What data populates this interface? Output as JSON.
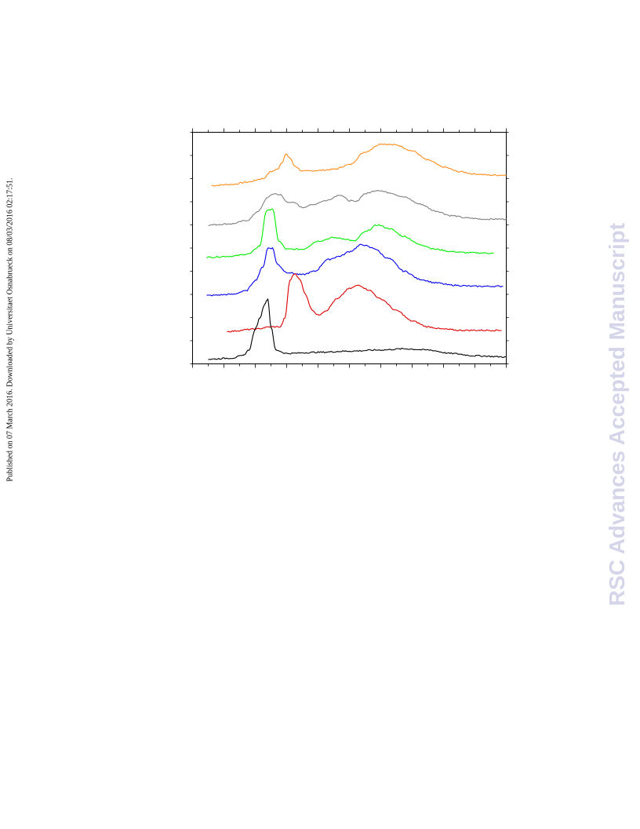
{
  "side_note": "Published on 07 March 2016. Downloaded by Universitaet Osnabrueck on 08/03/2016 02:17:51.",
  "watermark": "RSC Advances Accepted Manuscript",
  "chart_data": {
    "type": "line",
    "title": "",
    "xlabel": "",
    "ylabel": "",
    "xlim": [
      0,
      20
    ],
    "ylim": [
      0,
      10
    ],
    "x_ticks": 20,
    "y_ticks": 10,
    "grid": false,
    "series": [
      {
        "color": "#ff8c1a",
        "points": [
          [
            1.2,
            7.7
          ],
          [
            2.5,
            7.75
          ],
          [
            3.5,
            7.85
          ],
          [
            4.5,
            8.0
          ],
          [
            5.0,
            8.3
          ],
          [
            5.4,
            8.4
          ],
          [
            5.7,
            8.7
          ],
          [
            5.95,
            9.05
          ],
          [
            6.2,
            8.9
          ],
          [
            6.5,
            8.55
          ],
          [
            7.0,
            8.32
          ],
          [
            8.0,
            8.35
          ],
          [
            9.0,
            8.4
          ],
          [
            10.0,
            8.6
          ],
          [
            11.0,
            9.15
          ],
          [
            12.0,
            9.5
          ],
          [
            13.0,
            9.45
          ],
          [
            14.0,
            9.2
          ],
          [
            15.0,
            8.8
          ],
          [
            16.0,
            8.5
          ],
          [
            17.0,
            8.3
          ],
          [
            18.0,
            8.2
          ],
          [
            19.0,
            8.15
          ],
          [
            20.0,
            8.15
          ]
        ]
      },
      {
        "color": "#808080",
        "points": [
          [
            1.0,
            6.0
          ],
          [
            2.5,
            6.05
          ],
          [
            3.5,
            6.2
          ],
          [
            4.2,
            6.6
          ],
          [
            4.8,
            7.2
          ],
          [
            5.2,
            7.35
          ],
          [
            5.6,
            7.3
          ],
          [
            6.0,
            7.0
          ],
          [
            6.5,
            6.95
          ],
          [
            7.0,
            6.75
          ],
          [
            7.5,
            6.85
          ],
          [
            8.5,
            7.05
          ],
          [
            9.4,
            7.3
          ],
          [
            10.0,
            7.05
          ],
          [
            10.4,
            7.0
          ],
          [
            11.0,
            7.35
          ],
          [
            11.8,
            7.5
          ],
          [
            12.5,
            7.4
          ],
          [
            13.5,
            7.2
          ],
          [
            14.5,
            6.9
          ],
          [
            15.5,
            6.6
          ],
          [
            16.5,
            6.4
          ],
          [
            17.5,
            6.3
          ],
          [
            18.5,
            6.25
          ],
          [
            20.0,
            6.25
          ]
        ]
      },
      {
        "color": "#00ee00",
        "points": [
          [
            0.9,
            4.6
          ],
          [
            2.5,
            4.65
          ],
          [
            3.6,
            4.75
          ],
          [
            4.3,
            5.1
          ],
          [
            4.7,
            6.6
          ],
          [
            5.1,
            6.7
          ],
          [
            5.5,
            5.3
          ],
          [
            6.0,
            4.95
          ],
          [
            7.0,
            4.95
          ],
          [
            8.0,
            5.3
          ],
          [
            9.0,
            5.45
          ],
          [
            9.7,
            5.4
          ],
          [
            10.3,
            5.3
          ],
          [
            11.0,
            5.7
          ],
          [
            11.8,
            6.0
          ],
          [
            12.5,
            5.85
          ],
          [
            13.5,
            5.5
          ],
          [
            14.5,
            5.15
          ],
          [
            15.5,
            4.95
          ],
          [
            16.5,
            4.85
          ],
          [
            17.5,
            4.8
          ],
          [
            19.2,
            4.78
          ]
        ]
      },
      {
        "color": "#0000ee",
        "points": [
          [
            0.9,
            2.95
          ],
          [
            2.5,
            3.0
          ],
          [
            3.4,
            3.15
          ],
          [
            4.0,
            3.6
          ],
          [
            4.5,
            4.2
          ],
          [
            4.8,
            5.0
          ],
          [
            5.1,
            5.0
          ],
          [
            5.4,
            4.3
          ],
          [
            6.0,
            3.95
          ],
          [
            7.0,
            3.85
          ],
          [
            7.8,
            4.0
          ],
          [
            8.6,
            4.5
          ],
          [
            9.4,
            4.65
          ],
          [
            10.0,
            4.85
          ],
          [
            10.8,
            5.15
          ],
          [
            11.5,
            5.0
          ],
          [
            12.5,
            4.55
          ],
          [
            13.5,
            4.0
          ],
          [
            14.5,
            3.65
          ],
          [
            15.5,
            3.5
          ],
          [
            16.5,
            3.4
          ],
          [
            18.0,
            3.35
          ],
          [
            19.8,
            3.35
          ]
        ]
      },
      {
        "color": "#dd0000",
        "points": [
          [
            2.2,
            1.4
          ],
          [
            4.0,
            1.5
          ],
          [
            5.0,
            1.6
          ],
          [
            5.6,
            1.6
          ],
          [
            5.9,
            2.0
          ],
          [
            6.2,
            3.6
          ],
          [
            6.5,
            3.9
          ],
          [
            6.8,
            3.7
          ],
          [
            7.2,
            3.0
          ],
          [
            7.6,
            2.35
          ],
          [
            8.0,
            2.1
          ],
          [
            8.5,
            2.3
          ],
          [
            9.2,
            2.8
          ],
          [
            10.0,
            3.25
          ],
          [
            10.6,
            3.4
          ],
          [
            11.2,
            3.2
          ],
          [
            12.0,
            2.8
          ],
          [
            13.0,
            2.3
          ],
          [
            14.0,
            1.85
          ],
          [
            15.0,
            1.6
          ],
          [
            16.0,
            1.5
          ],
          [
            17.0,
            1.45
          ],
          [
            18.0,
            1.45
          ],
          [
            19.7,
            1.45
          ]
        ]
      },
      {
        "color": "#000000",
        "points": [
          [
            1.0,
            0.2
          ],
          [
            2.5,
            0.25
          ],
          [
            3.2,
            0.35
          ],
          [
            3.6,
            0.6
          ],
          [
            4.0,
            1.5
          ],
          [
            4.3,
            2.0
          ],
          [
            4.6,
            2.6
          ],
          [
            4.8,
            2.8
          ],
          [
            5.0,
            1.6
          ],
          [
            5.3,
            0.6
          ],
          [
            6.0,
            0.45
          ],
          [
            8.0,
            0.5
          ],
          [
            10.0,
            0.55
          ],
          [
            12.0,
            0.6
          ],
          [
            13.5,
            0.65
          ],
          [
            15.0,
            0.6
          ],
          [
            16.5,
            0.45
          ],
          [
            18.0,
            0.35
          ],
          [
            20.0,
            0.3
          ]
        ]
      }
    ]
  }
}
